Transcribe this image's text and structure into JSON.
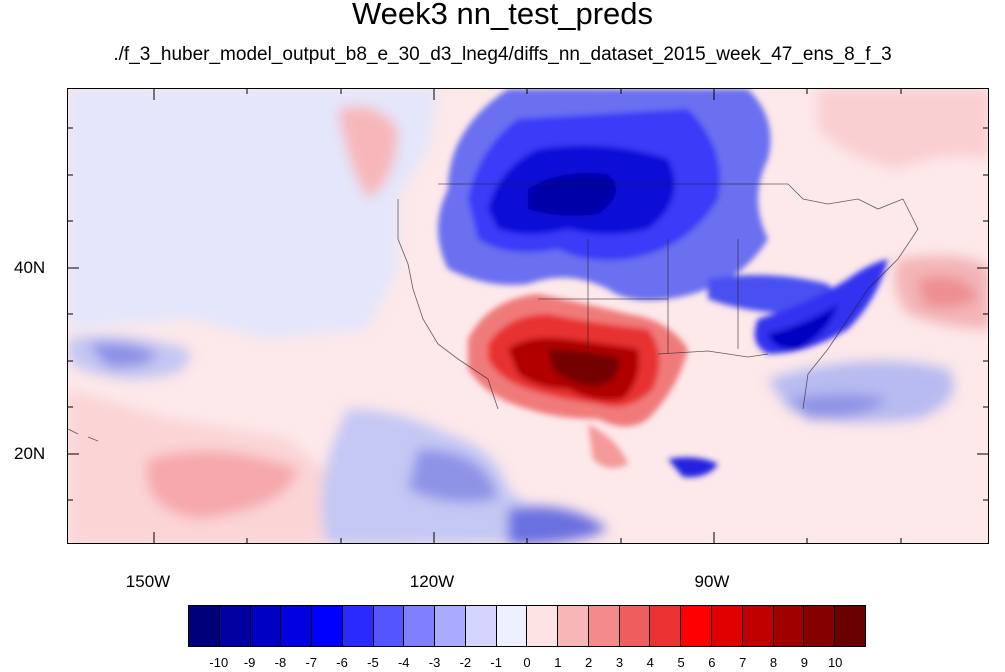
{
  "title": "Week3 nn_test_preds",
  "subtitle": "./f_3_huber_model_output_b8_e_30_d3_lneg4/diffs_nn_dataset_2015_week_47_ens_8_f_3",
  "lat_labels": [
    "40N",
    "20N"
  ],
  "lon_labels": [
    "150W",
    "120W",
    "90W"
  ],
  "colorbar": {
    "colors": [
      "#00007a",
      "#0000a0",
      "#0000c4",
      "#0000e0",
      "#0000ff",
      "#2a2aff",
      "#5555ff",
      "#8080ff",
      "#aaaaff",
      "#d4d4ff",
      "#eef0ff",
      "#fde3e3",
      "#f8b6b6",
      "#f48a8a",
      "#ef5e5e",
      "#ea3232",
      "#ff0000",
      "#e00000",
      "#c00000",
      "#a00000",
      "#850000",
      "#6b0000"
    ],
    "labels": [
      "-10",
      "-9",
      "-8",
      "-7",
      "-6",
      "-5",
      "-4",
      "-3",
      "-2",
      "-1",
      "0",
      "1",
      "2",
      "3",
      "4",
      "5",
      "6",
      "7",
      "8",
      "9",
      "10"
    ]
  },
  "icons": [
    "map-plot"
  ]
}
